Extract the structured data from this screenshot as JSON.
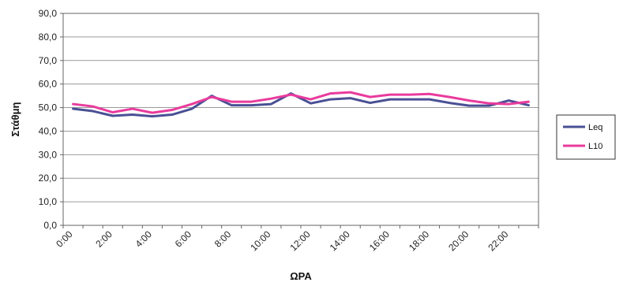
{
  "chart_data": {
    "type": "line",
    "xlabel": "ΩΡΑ",
    "ylabel": "Στάθμη",
    "ylim": [
      0,
      90
    ],
    "yticks": [
      "0,0",
      "10,0",
      "20,0",
      "30,0",
      "40,0",
      "50,0",
      "60,0",
      "70,0",
      "80,0",
      "90,0"
    ],
    "ytick_values": [
      0,
      10,
      20,
      30,
      40,
      50,
      60,
      70,
      80,
      90
    ],
    "categories": [
      "0:00",
      "1:00",
      "2:00",
      "3:00",
      "4:00",
      "5:00",
      "6:00",
      "7:00",
      "8:00",
      "9:00",
      "10:00",
      "11:00",
      "12:00",
      "13:00",
      "14:00",
      "15:00",
      "16:00",
      "17:00",
      "18:00",
      "19:00",
      "20:00",
      "21:00",
      "22:00",
      "23:00"
    ],
    "xticks_shown": [
      "0:00",
      "2:00",
      "4:00",
      "6:00",
      "8:00",
      "10:00",
      "12:00",
      "14:00",
      "16:00",
      "18:00",
      "20:00",
      "22:00"
    ],
    "grid": true,
    "legend": "right",
    "series": [
      {
        "name": "Leq",
        "color": "#4a5094",
        "values": [
          49.5,
          48.5,
          46.5,
          47.0,
          46.3,
          47.0,
          49.5,
          55.0,
          51.0,
          51.0,
          51.5,
          56.0,
          51.8,
          53.5,
          54.0,
          52.0,
          53.5,
          53.5,
          53.5,
          52.0,
          50.8,
          50.8,
          53.0,
          51.0
        ]
      },
      {
        "name": "L10",
        "color": "#e93b9d",
        "values": [
          51.5,
          50.5,
          48.0,
          49.5,
          47.8,
          49.0,
          51.5,
          54.5,
          52.5,
          52.5,
          53.8,
          55.5,
          53.5,
          56.0,
          56.5,
          54.5,
          55.5,
          55.5,
          55.8,
          54.5,
          53.0,
          51.8,
          51.5,
          52.5
        ]
      }
    ]
  }
}
